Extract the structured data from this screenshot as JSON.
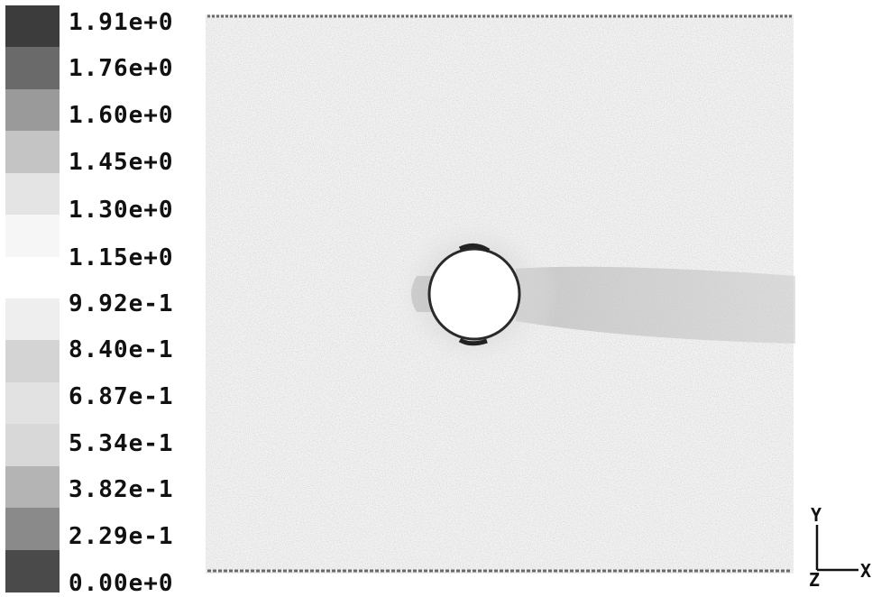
{
  "legend": {
    "labels": [
      "1.91e+0",
      "1.76e+0",
      "1.60e+0",
      "1.45e+0",
      "1.30e+0",
      "1.15e+0",
      "9.92e-1",
      "8.40e-1",
      "6.87e-1",
      "5.34e-1",
      "3.82e-1",
      "2.29e-1",
      "0.00e+0"
    ],
    "band_colors": [
      "#3c3c3c",
      "#6a6a6a",
      "#9a9a9a",
      "#c4c4c4",
      "#e4e4e4",
      "#f6f6f6",
      "#ffffff",
      "#eeeeee",
      "#d4d4d4",
      "#e2e2e2",
      "#d8d8d8",
      "#b4b4b4",
      "#8a8a8a",
      "#4a4a4a"
    ]
  },
  "axes": {
    "y_label": "Y",
    "z_label": "Z",
    "x_label": "X"
  }
}
